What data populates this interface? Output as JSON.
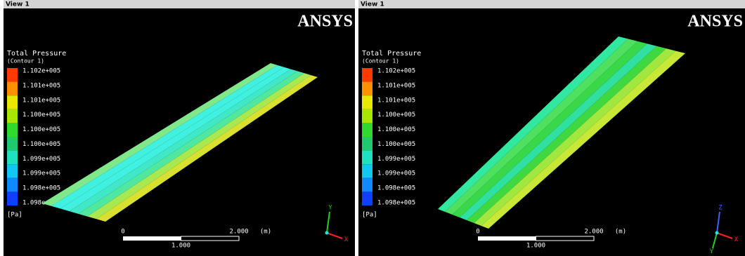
{
  "panels": [
    {
      "view_label": "View 1",
      "logo": "ANSYS",
      "legend": {
        "title": "Total Pressure",
        "subtitle": "(Contour 1)",
        "labels": [
          "1.102e+005",
          "1.101e+005",
          "1.101e+005",
          "1.100e+005",
          "1.100e+005",
          "1.100e+005",
          "1.099e+005",
          "1.099e+005",
          "1.098e+005",
          "1.098e+005"
        ],
        "unit": "[Pa]"
      },
      "scale": {
        "start": "0",
        "end": "2.000",
        "unit": "(m)",
        "mid": "1.000"
      },
      "axes": [
        "Y",
        "X"
      ]
    },
    {
      "view_label": "View 1",
      "logo": "ANSYS",
      "legend": {
        "title": "Total Pressure",
        "subtitle": "(Contour 1)",
        "labels": [
          "1.102e+005",
          "1.101e+005",
          "1.101e+005",
          "1.100e+005",
          "1.100e+005",
          "1.100e+005",
          "1.099e+005",
          "1.099e+005",
          "1.098e+005",
          "1.098e+005"
        ],
        "unit": "[Pa]"
      },
      "scale": {
        "start": "0",
        "end": "2.000",
        "unit": "(m)",
        "mid": "1.000"
      },
      "axes": [
        "Z",
        "X",
        "Y"
      ]
    }
  ]
}
